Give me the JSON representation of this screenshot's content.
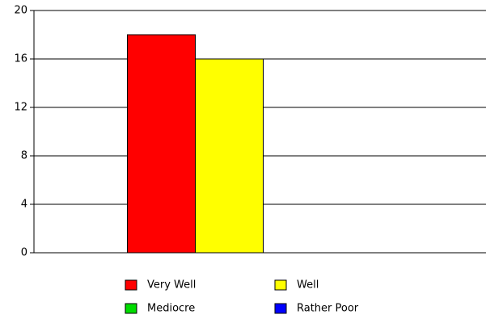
{
  "chart_data": {
    "type": "bar",
    "categories": [
      null
    ],
    "series": [
      {
        "name": "Very Well",
        "color": "#ff0000",
        "values": [
          18
        ]
      },
      {
        "name": "Well",
        "color": "#ffff00",
        "values": [
          16
        ]
      },
      {
        "name": "Mediocre",
        "color": "#00dd00",
        "values": [
          0
        ]
      },
      {
        "name": "Rather Poor",
        "color": "#0000ff",
        "values": [
          0
        ]
      }
    ],
    "ylim": [
      0,
      20
    ],
    "yticks": [
      0,
      4,
      8,
      12,
      16,
      20
    ],
    "grid": true
  }
}
